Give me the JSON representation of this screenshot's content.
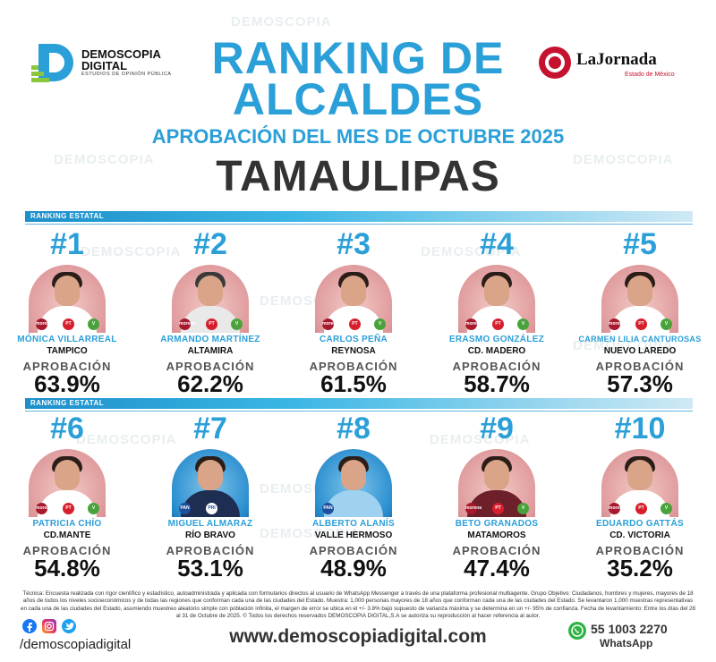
{
  "brand_left": {
    "name_line1": "DEMOSCOPIA",
    "name_line2": "DIGITAL",
    "tagline": "ESTUDIOS DE OPINIÓN PÚBLICA"
  },
  "brand_right": {
    "name": "LaJornada",
    "sub": "Estado de México"
  },
  "title_line1": "RANKING DE",
  "title_line2": "ALCALDES",
  "subtitle": "APROBACIÓN DEL MES DE OCTUBRE 2025",
  "state": "TAMAULIPAS",
  "section_label": "RANKING ESTATAL",
  "approval_label": "APROBACIÓN",
  "row1": [
    {
      "rank": "#1",
      "name": "MÓNICA VILLARREAL",
      "city": "TAMPICO",
      "approval": "63.9%",
      "approval_value": 63.9
    },
    {
      "rank": "#2",
      "name": "ARMANDO MARTÍNEZ",
      "city": "ALTAMIRA",
      "approval": "62.2%",
      "approval_value": 62.2
    },
    {
      "rank": "#3",
      "name": "CARLOS PEÑA",
      "city": "REYNOSA",
      "approval": "61.5%",
      "approval_value": 61.5
    },
    {
      "rank": "#4",
      "name": "ERASMO GONZÁLEZ",
      "city": "CD. MADERO",
      "approval": "58.7%",
      "approval_value": 58.7
    },
    {
      "rank": "#5",
      "name": "CARMEN LILIA CANTUROSAS",
      "city": "NUEVO LAREDO",
      "approval": "57.3%",
      "approval_value": 57.3
    }
  ],
  "row2": [
    {
      "rank": "#6",
      "name": "PATRICIA CHÍO",
      "city": "CD.MANTE",
      "approval": "54.8%",
      "approval_value": 54.8
    },
    {
      "rank": "#7",
      "name": "MIGUEL ALMARAZ",
      "city": "RÍO BRAVO",
      "approval": "53.1%",
      "approval_value": 53.1
    },
    {
      "rank": "#8",
      "name": "ALBERTO ALANÍS",
      "city": "VALLE HERMOSO",
      "approval": "48.9%",
      "approval_value": 48.9
    },
    {
      "rank": "#9",
      "name": "BETO GRANADOS",
      "city": "MATAMOROS",
      "approval": "47.4%",
      "approval_value": 47.4
    },
    {
      "rank": "#10",
      "name": "EDUARDO GATTÁS",
      "city": "CD. VICTORIA",
      "approval": "35.2%",
      "approval_value": 35.2
    }
  ],
  "party_badges": {
    "morena": "morena",
    "pt": "PT",
    "verde": "V",
    "pan": "PAN",
    "pri": "PRI"
  },
  "footnote": "Técnica: Encuesta realizada con rigor científico y estadístico, autoadministrada y aplicada con formularios directos al usuario de WhatsApp Messenger a través de una plataforma profesional multiagente. Grupo Objetivo: Ciudadanos, hombres y mujeres, mayores de 18 años de todos los niveles socioeconómicos y de todas las regiones que conforman cada una de las ciudades del Estado. Muestra: 1,000 personas mayores de 18 años que conforman cada una de las ciudades del Estado. Se levantaron 1,000 muestras representativas en cada una de las ciudades del Estado, asumiendo muestreo aleatorio simple con población infinita, el margen de error se ubica en el +/- 3.8% bajo supuesto de varianza máxima y se determina en un +/- 95% de confianza. Fecha de levantamiento: Entre los días del 28 al 31 de Octubre de 2025. © Todos los derechos reservados DEMOSCOPIA DIGITAL,S.A se autoriza su reproducción al hacer referencia al autor.",
  "social_handle": "/demoscopiadigital",
  "website": "www.demoscopiadigital.com",
  "phone": "55 1003 2270",
  "whatsapp_label": "WhatsApp",
  "colors": {
    "accent": "#2a9fd8",
    "dark": "#333333",
    "red": "#c4122f",
    "green": "#2fb344"
  }
}
